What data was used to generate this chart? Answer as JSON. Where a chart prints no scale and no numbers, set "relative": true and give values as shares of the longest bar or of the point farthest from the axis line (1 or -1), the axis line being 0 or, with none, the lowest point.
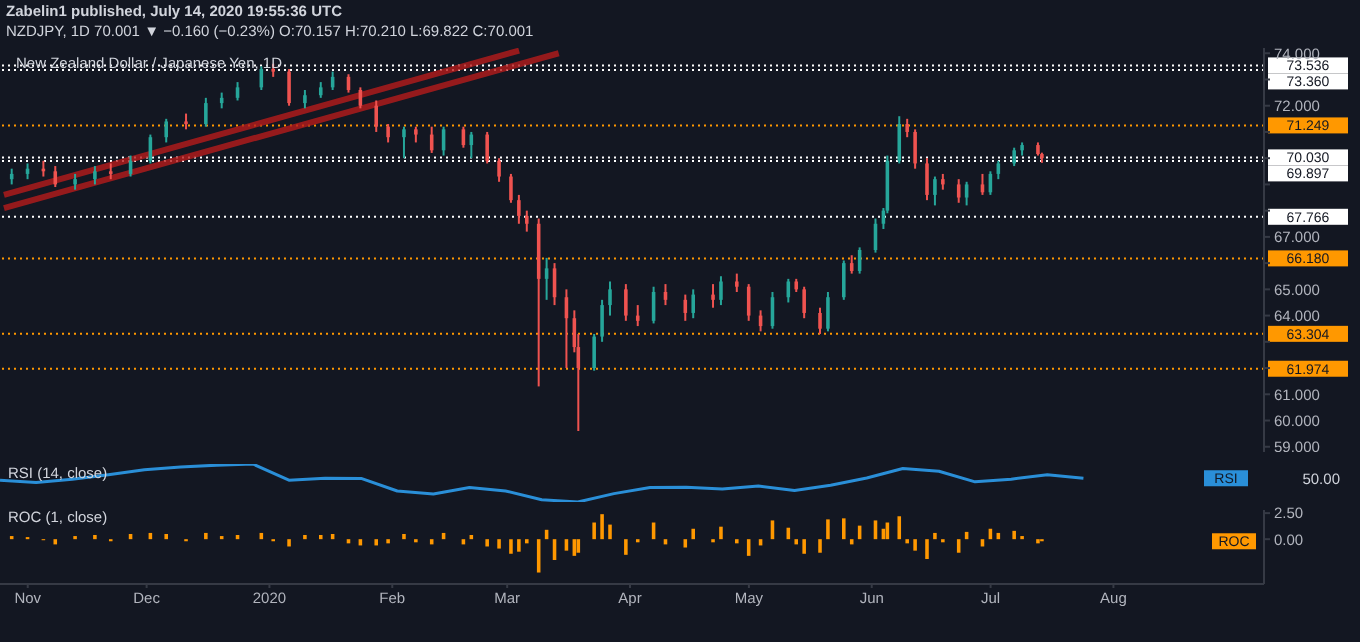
{
  "chart_data": [
    {
      "type": "candlestick",
      "title": "Zabelin1 published, July 14, 2020 19:55:36 UTC",
      "subtitle": "NZDJPY, 1D 70.001 ▼ −0.160 (−0.23%) O:70.157 H:70.210 L:69.822 C:70.001",
      "annotations": [
        "New Zealand Dollar / Japanese Yen, 1D"
      ],
      "x": [
        "2019-10-28",
        "2019-11-01",
        "2019-11-05",
        "2019-11-08",
        "2019-11-13",
        "2019-11-18",
        "2019-11-22",
        "2019-11-27",
        "2019-12-02",
        "2019-12-06",
        "2019-12-11",
        "2019-12-16",
        "2019-12-20",
        "2019-12-24",
        "2019-12-30",
        "2020-01-02",
        "2020-01-06",
        "2020-01-10",
        "2020-01-14",
        "2020-01-17",
        "2020-01-21",
        "2020-01-24",
        "2020-01-28",
        "2020-01-31",
        "2020-02-04",
        "2020-02-07",
        "2020-02-11",
        "2020-02-14",
        "2020-02-19",
        "2020-02-21",
        "2020-02-25",
        "2020-02-28",
        "2020-03-02",
        "2020-03-04",
        "2020-03-06",
        "2020-03-09",
        "2020-03-11",
        "2020-03-13",
        "2020-03-16",
        "2020-03-18",
        "2020-03-19",
        "2020-03-23",
        "2020-03-25",
        "2020-03-27",
        "2020-03-31",
        "2020-04-03",
        "2020-04-07",
        "2020-04-10",
        "2020-04-15",
        "2020-04-17",
        "2020-04-22",
        "2020-04-24",
        "2020-04-28",
        "2020-05-01",
        "2020-05-04",
        "2020-05-07",
        "2020-05-11",
        "2020-05-13",
        "2020-05-15",
        "2020-05-19",
        "2020-05-21",
        "2020-05-25",
        "2020-05-27",
        "2020-05-29",
        "2020-06-02",
        "2020-06-04",
        "2020-06-05",
        "2020-06-08",
        "2020-06-10",
        "2020-06-12",
        "2020-06-15",
        "2020-06-17",
        "2020-06-19",
        "2020-06-23",
        "2020-06-25",
        "2020-06-29",
        "2020-07-01",
        "2020-07-03",
        "2020-07-07",
        "2020-07-09",
        "2020-07-13",
        "2020-07-14"
      ],
      "ohlc": [
        [
          69.2,
          69.6,
          69.0,
          69.4
        ],
        [
          69.4,
          69.8,
          69.2,
          69.6
        ],
        [
          69.6,
          69.9,
          69.3,
          69.5
        ],
        [
          69.5,
          69.7,
          68.9,
          69.0
        ],
        [
          69.0,
          69.4,
          68.8,
          69.2
        ],
        [
          69.2,
          69.7,
          69.0,
          69.5
        ],
        [
          69.5,
          69.8,
          69.2,
          69.4
        ],
        [
          69.4,
          70.1,
          69.3,
          69.9
        ],
        [
          69.9,
          70.9,
          69.8,
          70.8
        ],
        [
          70.8,
          71.5,
          70.6,
          71.4
        ],
        [
          71.4,
          71.7,
          71.1,
          71.3
        ],
        [
          71.3,
          72.3,
          71.2,
          72.1
        ],
        [
          72.1,
          72.5,
          71.9,
          72.3
        ],
        [
          72.3,
          72.9,
          72.2,
          72.7
        ],
        [
          72.7,
          73.5,
          72.6,
          73.4
        ],
        [
          73.4,
          73.6,
          73.1,
          73.3
        ],
        [
          73.3,
          73.4,
          72.0,
          72.1
        ],
        [
          72.1,
          72.6,
          71.9,
          72.4
        ],
        [
          72.4,
          72.9,
          72.3,
          72.7
        ],
        [
          72.7,
          73.3,
          72.6,
          73.1
        ],
        [
          73.1,
          73.2,
          72.5,
          72.6
        ],
        [
          72.6,
          72.7,
          71.9,
          72.0
        ],
        [
          72.0,
          72.2,
          71.0,
          71.2
        ],
        [
          71.2,
          71.3,
          70.6,
          70.8
        ],
        [
          70.8,
          71.2,
          70.0,
          71.1
        ],
        [
          71.1,
          71.2,
          70.6,
          70.9
        ],
        [
          70.9,
          71.2,
          70.2,
          70.3
        ],
        [
          70.3,
          71.2,
          70.1,
          71.1
        ],
        [
          71.1,
          71.2,
          70.4,
          70.5
        ],
        [
          70.5,
          71.0,
          70.0,
          70.9
        ],
        [
          70.9,
          71.0,
          69.8,
          69.9
        ],
        [
          69.9,
          70.0,
          69.1,
          69.3
        ],
        [
          69.3,
          69.4,
          68.3,
          68.4
        ],
        [
          68.4,
          68.6,
          67.5,
          67.8
        ],
        [
          67.8,
          68.0,
          67.2,
          67.5
        ],
        [
          67.5,
          67.7,
          61.3,
          65.4
        ],
        [
          65.4,
          66.2,
          64.6,
          65.8
        ],
        [
          65.8,
          66.0,
          64.4,
          64.7
        ],
        [
          64.7,
          65.0,
          62.0,
          63.9
        ],
        [
          63.9,
          64.2,
          62.6,
          62.8
        ],
        [
          62.8,
          63.3,
          59.6,
          62.0
        ],
        [
          62.0,
          63.3,
          61.9,
          63.2
        ],
        [
          63.2,
          64.6,
          63.0,
          64.4
        ],
        [
          64.4,
          65.3,
          64.0,
          65.0
        ],
        [
          65.0,
          65.2,
          63.8,
          64.0
        ],
        [
          64.0,
          64.4,
          63.6,
          63.8
        ],
        [
          63.8,
          65.1,
          63.7,
          64.9
        ],
        [
          64.9,
          65.2,
          64.4,
          64.6
        ],
        [
          64.6,
          64.8,
          63.8,
          64.1
        ],
        [
          64.1,
          65.0,
          63.9,
          64.8
        ],
        [
          64.8,
          65.2,
          64.3,
          64.6
        ],
        [
          64.6,
          65.5,
          64.4,
          65.3
        ],
        [
          65.3,
          65.6,
          64.9,
          65.1
        ],
        [
          65.1,
          65.2,
          63.8,
          64.0
        ],
        [
          64.0,
          64.2,
          63.4,
          63.6
        ],
        [
          63.6,
          64.9,
          63.5,
          64.7
        ],
        [
          64.7,
          65.4,
          64.5,
          65.3
        ],
        [
          65.3,
          65.4,
          64.9,
          65.0
        ],
        [
          65.0,
          65.1,
          63.9,
          64.1
        ],
        [
          64.1,
          64.3,
          63.3,
          63.5
        ],
        [
          63.5,
          64.9,
          63.4,
          64.7
        ],
        [
          64.7,
          66.1,
          64.6,
          66.0
        ],
        [
          66.0,
          66.3,
          65.6,
          65.7
        ],
        [
          65.7,
          66.6,
          65.6,
          66.5
        ],
        [
          66.5,
          67.7,
          66.4,
          67.5
        ],
        [
          67.5,
          68.1,
          67.3,
          68.0
        ],
        [
          68.0,
          70.1,
          67.9,
          69.9
        ],
        [
          69.9,
          71.6,
          69.8,
          71.3
        ],
        [
          71.3,
          71.5,
          70.8,
          71.0
        ],
        [
          71.0,
          71.1,
          69.6,
          69.8
        ],
        [
          69.8,
          70.0,
          68.4,
          68.6
        ],
        [
          68.6,
          69.3,
          68.2,
          69.2
        ],
        [
          69.2,
          69.4,
          68.8,
          69.0
        ],
        [
          69.0,
          69.2,
          68.3,
          68.5
        ],
        [
          68.5,
          69.1,
          68.2,
          69.0
        ],
        [
          69.0,
          69.4,
          68.6,
          68.7
        ],
        [
          68.7,
          69.5,
          68.6,
          69.4
        ],
        [
          69.4,
          69.9,
          69.2,
          69.8
        ],
        [
          69.8,
          70.4,
          69.7,
          70.3
        ],
        [
          70.3,
          70.6,
          70.1,
          70.5
        ],
        [
          70.5,
          70.6,
          70.1,
          70.157
        ],
        [
          70.157,
          70.21,
          69.822,
          70.001
        ]
      ],
      "series": [
        {
          "type": "line",
          "color": "#b71c1c",
          "x": [
            "2019-10-26",
            "2020-03-14"
          ],
          "values": [
            68.1,
            74.0
          ]
        },
        {
          "type": "line",
          "color": "#b71c1c",
          "x": [
            "2019-10-26",
            "2020-03-04"
          ],
          "values": [
            68.6,
            74.1
          ]
        }
      ],
      "xlim": [
        "2019-10-25",
        "2020-09-08"
      ],
      "ylim": [
        58.8,
        74.2
      ],
      "yticks": [
        {
          "value": 59,
          "label": "59.000"
        },
        {
          "value": 60,
          "label": "60.000"
        },
        {
          "value": 61,
          "label": "61.000"
        },
        {
          "value": 62,
          "label": null
        },
        {
          "value": 63,
          "label": null
        },
        {
          "value": 64,
          "label": "64.000"
        },
        {
          "value": 65,
          "label": "65.000"
        },
        {
          "value": 66,
          "label": null
        },
        {
          "value": 67,
          "label": "67.000"
        },
        {
          "value": 68,
          "label": null
        },
        {
          "value": 69,
          "label": null
        },
        {
          "value": 70,
          "label": null
        },
        {
          "value": 71,
          "label": null
        },
        {
          "value": 72,
          "label": "72.000"
        },
        {
          "value": 73,
          "label": null
        },
        {
          "value": 74,
          "label": "74.000"
        }
      ],
      "ref_lines": [
        {
          "axis": "y",
          "value": 73.536,
          "label": "73.536",
          "color": "#ffffff",
          "line_style": "dotted"
        },
        {
          "axis": "y",
          "value": 73.36,
          "label": "73.360",
          "color": "#ffffff",
          "line_style": "dotted"
        },
        {
          "axis": "y",
          "value": 71.249,
          "label": "71.249",
          "color": "#ff9800",
          "line_style": "dotted"
        },
        {
          "axis": "y",
          "value": 70.03,
          "label": "70.030",
          "color": "#ffffff",
          "line_style": "dotted"
        },
        {
          "axis": "y",
          "value": 69.897,
          "label": "69.897",
          "color": "#ffffff",
          "line_style": "dotted"
        },
        {
          "axis": "y",
          "value": 67.766,
          "label": "67.766",
          "color": "#ffffff",
          "line_style": "dotted"
        },
        {
          "axis": "y",
          "value": 66.18,
          "label": "66.180",
          "color": "#ff9800",
          "line_style": "dotted"
        },
        {
          "axis": "y",
          "value": 63.304,
          "label": "63.304",
          "color": "#ff9800",
          "line_style": "dotted"
        },
        {
          "axis": "y",
          "value": 61.974,
          "label": "61.974",
          "color": "#ff9800",
          "line_style": "dotted"
        }
      ],
      "tick_labels": "y"
    },
    {
      "type": "line",
      "title": "RSI (14, close)",
      "relative": true,
      "annotations": [
        "50.00"
      ],
      "categories": [
        null,
        null,
        null,
        null,
        null,
        null,
        null,
        null,
        null,
        null,
        null,
        null,
        null,
        null,
        null,
        null,
        null,
        null,
        null,
        null,
        null,
        null,
        null,
        null,
        null,
        null,
        null,
        null,
        null,
        null,
        null,
        null,
        null,
        null,
        null,
        null
      ],
      "series": [
        {
          "name": "RSI",
          "color": "#2a8fd8",
          "values": [
            0.575,
            0.515,
            0.6,
            0.72,
            0.85,
            0.92,
            0.97,
            1,
            0.575,
            0.625,
            0.62,
            0.29,
            0.21,
            0.38,
            0.29,
            0.06,
            0,
            0.22,
            0.38,
            0.39,
            0.34,
            0.42,
            0.3,
            0.44,
            0.63,
            0.88,
            0.81,
            0.53,
            0.6,
            0.72,
            0.625,
            null,
            null,
            null,
            null,
            null
          ]
        }
      ],
      "tick_labels": false
    },
    {
      "type": "bar",
      "title": "ROC (1, close)",
      "x": [
        "2019-10-28",
        "2019-11-01",
        "2019-11-05",
        "2019-11-08",
        "2019-11-13",
        "2019-11-18",
        "2019-11-22",
        "2019-11-27",
        "2019-12-02",
        "2019-12-06",
        "2019-12-11",
        "2019-12-16",
        "2019-12-20",
        "2019-12-24",
        "2019-12-30",
        "2020-01-02",
        "2020-01-06",
        "2020-01-10",
        "2020-01-14",
        "2020-01-17",
        "2020-01-21",
        "2020-01-24",
        "2020-01-28",
        "2020-01-31",
        "2020-02-04",
        "2020-02-07",
        "2020-02-11",
        "2020-02-14",
        "2020-02-19",
        "2020-02-21",
        "2020-02-25",
        "2020-02-28",
        "2020-03-02",
        "2020-03-04",
        "2020-03-06",
        "2020-03-09",
        "2020-03-11",
        "2020-03-13",
        "2020-03-16",
        "2020-03-18",
        "2020-03-19",
        "2020-03-23",
        "2020-03-25",
        "2020-03-27",
        "2020-03-31",
        "2020-04-03",
        "2020-04-07",
        "2020-04-10",
        "2020-04-15",
        "2020-04-17",
        "2020-04-22",
        "2020-04-24",
        "2020-04-28",
        "2020-05-01",
        "2020-05-04",
        "2020-05-07",
        "2020-05-11",
        "2020-05-13",
        "2020-05-15",
        "2020-05-19",
        "2020-05-21",
        "2020-05-25",
        "2020-05-27",
        "2020-05-29",
        "2020-06-02",
        "2020-06-04",
        "2020-06-05",
        "2020-06-08",
        "2020-06-10",
        "2020-06-12",
        "2020-06-15",
        "2020-06-17",
        "2020-06-19",
        "2020-06-23",
        "2020-06-25",
        "2020-06-29",
        "2020-07-01",
        "2020-07-03",
        "2020-07-07",
        "2020-07-09",
        "2020-07-13",
        "2020-07-14"
      ],
      "series": [
        {
          "name": "ROC",
          "color": "#ff9800",
          "values": [
            0.3,
            0.2,
            -0.1,
            -0.5,
            0.3,
            0.4,
            -0.2,
            0.5,
            0.6,
            0.5,
            -0.2,
            0.6,
            0.3,
            0.4,
            0.6,
            -0.2,
            -0.7,
            0.4,
            0.4,
            0.5,
            -0.4,
            -0.6,
            -0.6,
            -0.4,
            0.5,
            -0.3,
            -0.5,
            0.6,
            -0.5,
            0.4,
            -0.7,
            -0.9,
            -1.4,
            -1.2,
            -0.4,
            -3.2,
            0.9,
            -2.0,
            -1.1,
            -1.6,
            -1.3,
            1.6,
            2.4,
            1.4,
            -1.5,
            -0.3,
            1.6,
            -0.5,
            -0.8,
            1.0,
            -0.3,
            1.2,
            -0.4,
            -1.6,
            -0.6,
            1.8,
            1.1,
            -0.5,
            -1.4,
            -1.3,
            1.9,
            2.0,
            -0.5,
            1.3,
            1.8,
            1.0,
            1.6,
            2.2,
            -0.4,
            -1.1,
            -1.9,
            0.6,
            -0.3,
            -1.3,
            0.7,
            -0.7,
            1.0,
            0.6,
            0.8,
            0.3,
            -0.4,
            -0.2
          ]
        }
      ],
      "xlim": [
        "2019-10-25",
        "2020-09-08"
      ],
      "xticks": [
        {
          "value": "2019-11-01",
          "label": "Nov"
        },
        {
          "value": "2019-12-01",
          "label": "Dec"
        },
        {
          "value": "2020-01-01",
          "label": "2020"
        },
        {
          "value": "2020-02-01",
          "label": "Feb"
        },
        {
          "value": "2020-03-01",
          "label": "Mar"
        },
        {
          "value": "2020-04-01",
          "label": "Apr"
        },
        {
          "value": "2020-05-01",
          "label": "May"
        },
        {
          "value": "2020-06-01",
          "label": "Jun"
        },
        {
          "value": "2020-07-01",
          "label": "Jul"
        },
        {
          "value": "2020-08-01",
          "label": "Aug"
        }
      ],
      "ylim": [
        -4.3,
        2.8
      ],
      "yticks": [
        {
          "value": 2.5,
          "label": "2.50"
        },
        {
          "value": 0,
          "label": "0.00"
        }
      ]
    }
  ]
}
